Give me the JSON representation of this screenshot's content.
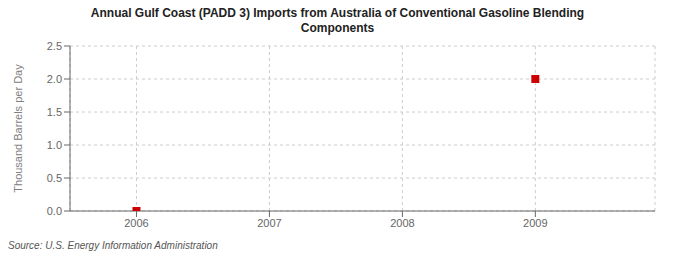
{
  "chart_data": {
    "type": "scatter",
    "title": "Annual Gulf Coast (PADD 3) Imports from Australia of Conventional Gasoline Blending\nComponents",
    "y_label": "Thousand Barrels per Day",
    "annotations": [
      "Source: U.S. Energy Information Administration"
    ],
    "x": [
      2006,
      2009
    ],
    "values": [
      0.0,
      2.0
    ],
    "color": "#cc0000",
    "marker": "square",
    "xlim": [
      2005.5,
      2009.9
    ],
    "ylim": [
      0,
      2.5
    ],
    "xticks": [
      2006,
      2007,
      2008,
      2009
    ],
    "yticks": [
      {
        "value": 0,
        "label": "0.0"
      },
      0.5,
      {
        "value": 1,
        "label": "1.0"
      },
      1.5,
      {
        "value": 2,
        "label": "2.0"
      },
      2.5
    ],
    "grid": true
  }
}
